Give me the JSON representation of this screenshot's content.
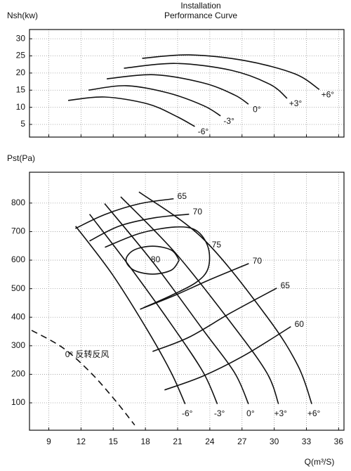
{
  "chart_data": [
    {
      "type": "line",
      "title": "Installation",
      "subtitle": "Performance Curve",
      "ylabel": "Nsh(kw)",
      "xlim": [
        7.2,
        36.5
      ],
      "xticks": [
        9,
        12,
        15,
        18,
        21,
        24,
        27,
        30,
        33,
        36
      ],
      "ylim": [
        1.3,
        32.7
      ],
      "yticks": [
        5,
        10,
        15,
        20,
        25,
        30
      ],
      "grid": true,
      "series": [
        {
          "name": "-6°",
          "color": "#111111",
          "x": [
            10.8,
            14.2,
            18.2,
            20.8,
            22.6
          ],
          "values": [
            12.0,
            13.0,
            11.0,
            7.5,
            4.4
          ]
        },
        {
          "name": "-3°",
          "color": "#111111",
          "x": [
            12.7,
            16.2,
            20.1,
            23.4,
            25.0
          ],
          "values": [
            15.0,
            16.3,
            14.2,
            10.5,
            7.5
          ]
        },
        {
          "name": "0°",
          "color": "#111111",
          "x": [
            14.4,
            18.8,
            23.4,
            26.3,
            27.6
          ],
          "values": [
            18.3,
            19.5,
            17.1,
            13.6,
            10.9
          ]
        },
        {
          "name": "+3°",
          "color": "#111111",
          "x": [
            16.0,
            20.8,
            26.0,
            29.6,
            31.2
          ],
          "values": [
            21.4,
            22.8,
            20.8,
            16.7,
            12.6
          ]
        },
        {
          "name": "+6°",
          "color": "#111111",
          "x": [
            17.7,
            22.1,
            27.3,
            31.9,
            34.2
          ],
          "values": [
            24.3,
            25.3,
            23.6,
            19.8,
            15.2
          ]
        }
      ]
    },
    {
      "type": "line",
      "ylabel": "Pst(Pa)",
      "xlabel": "Q(m³/S)",
      "xlim": [
        7.2,
        36.5
      ],
      "xticks": [
        9,
        12,
        15,
        18,
        21,
        24,
        27,
        30,
        33,
        36
      ],
      "ylim": [
        4,
        908
      ],
      "yticks": [
        100,
        200,
        300,
        400,
        500,
        600,
        700,
        800
      ],
      "grid": true,
      "series": [
        {
          "name": "-6°",
          "color": "#111111",
          "x": [
            11.5,
            14.9,
            18.2,
            20.4,
            21.7
          ],
          "values": [
            719,
            551,
            354,
            206,
            96
          ]
        },
        {
          "name": "-3°",
          "color": "#111111",
          "x": [
            12.8,
            16.8,
            20.8,
            23.4,
            24.7
          ],
          "values": [
            761,
            564,
            354,
            206,
            96
          ]
        },
        {
          "name": "0°",
          "color": "#111111",
          "x": [
            14.2,
            18.8,
            23.4,
            26.3,
            27.6
          ],
          "values": [
            798,
            588,
            354,
            206,
            96
          ]
        },
        {
          "name": "+3°",
          "color": "#111111",
          "x": [
            15.7,
            20.8,
            26.0,
            29.3,
            30.4
          ],
          "values": [
            822,
            625,
            379,
            206,
            96
          ]
        },
        {
          "name": "+6°",
          "color": "#111111",
          "x": [
            17.4,
            23.4,
            29.3,
            32.2,
            33.5
          ],
          "values": [
            839,
            674,
            403,
            231,
            96
          ]
        },
        {
          "name": "0° 反转反风",
          "color": "#111111",
          "dashed": true,
          "x": [
            7.4,
            10.3,
            12.9,
            15.2,
            17.0
          ],
          "values": [
            354,
            293,
            206,
            108,
            22
          ]
        }
      ],
      "efficiency_curves": [
        {
          "name": "65",
          "x": [
            11.48,
            14.23,
            17.5,
            20.63
          ],
          "values": [
            711,
            760,
            798,
            815
          ]
        },
        {
          "name": "70",
          "x": [
            12.79,
            15.54,
            18.8,
            22.07
          ],
          "values": [
            667,
            719,
            748,
            761
          ]
        },
        {
          "name": "75",
          "x": [
            14.23,
            17.5,
            20.76,
            22.73,
            23.84,
            23.84,
            22.73,
            20.44,
            17.82
          ],
          "values": [
            645,
            694,
            716,
            704,
            645,
            571,
            522,
            477,
            433
          ]
        },
        {
          "name": "80",
          "x": [
            21.15,
            20.42,
            18.67,
            16.92,
            16.19,
            16.92,
            18.67,
            20.42,
            21.15
          ],
          "values": [
            600,
            635,
            649,
            635,
            600,
            565,
            551,
            565,
            600
          ]
        },
        {
          "name": "70",
          "x": [
            17.5,
            20.76,
            24.03,
            27.63
          ],
          "values": [
            428,
            477,
            532,
            588
          ]
        },
        {
          "name": "65",
          "x": [
            18.67,
            22.07,
            25.99,
            30.24
          ],
          "values": [
            280,
            330,
            416,
            502
          ]
        },
        {
          "name": "60",
          "x": [
            19.78,
            23.38,
            27.3,
            31.55
          ],
          "values": [
            145,
            194,
            268,
            367
          ]
        }
      ]
    }
  ]
}
